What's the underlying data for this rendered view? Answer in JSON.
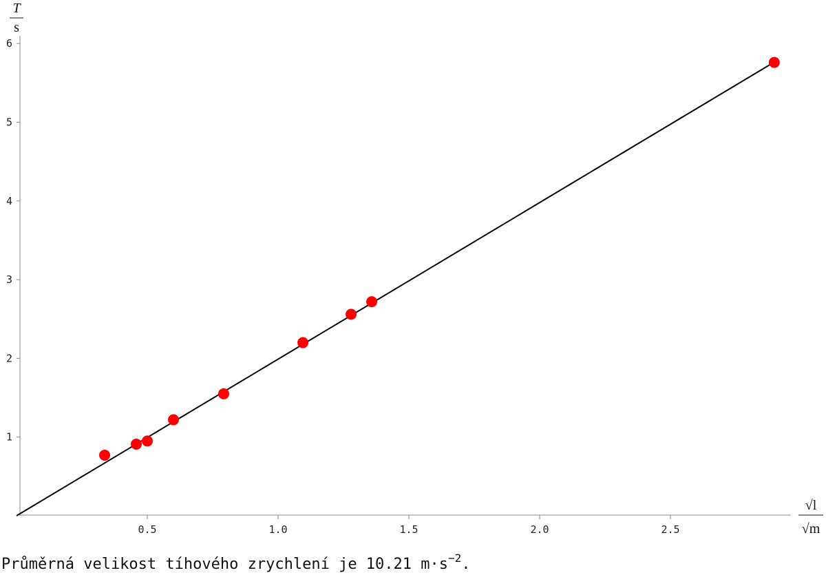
{
  "chart_data": {
    "type": "scatter",
    "x_label": {
      "numerator": "√l",
      "denominator": "√m"
    },
    "y_label": {
      "numerator": "T",
      "denominator": "s"
    },
    "points": {
      "x": [
        0.337,
        0.458,
        0.5,
        0.6,
        0.792,
        1.095,
        1.279,
        1.358,
        2.897
      ],
      "y": [
        0.77,
        0.91,
        0.95,
        1.22,
        1.55,
        2.2,
        2.56,
        2.72,
        5.76
      ],
      "color": "#ff0000"
    },
    "fit": {
      "x": [
        0,
        2.9
      ],
      "y": [
        0,
        5.77
      ],
      "color": "#000000"
    },
    "xlim": [
      0,
      2.96
    ],
    "ylim": [
      0,
      6.1
    ],
    "xticks": [
      0.5,
      {
        "value": 1,
        "label": "1.0"
      },
      1.5,
      {
        "value": 2,
        "label": "2.0"
      },
      2.5
    ],
    "yticks": [
      1,
      2,
      3,
      4,
      5,
      6
    ]
  },
  "caption": {
    "text": "Průměrná velikost tíhového zrychlení je 10.21 m·s",
    "superscript": "−2",
    "end": "."
  }
}
